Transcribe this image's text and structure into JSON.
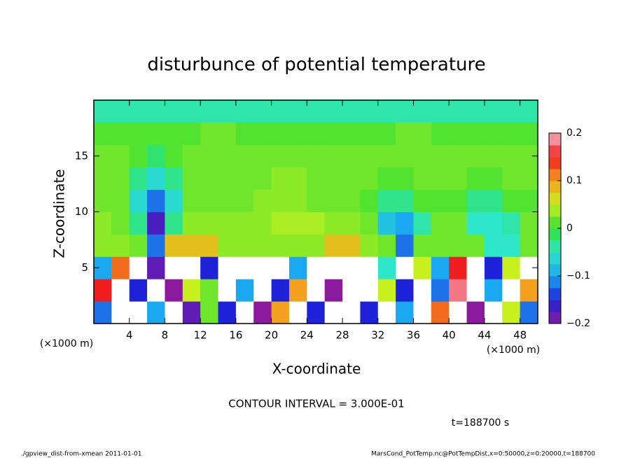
{
  "chart_data": {
    "type": "heatmap",
    "title": "disturbunce of potential temperature",
    "x_label": "X-coordinate",
    "y_label": "Z-coordinate",
    "x_unit": "(×1000 m)",
    "y_unit": "(×1000 m)",
    "contour_note": "CONTOUR INTERVAL = 3.000E-01",
    "time_note": "t=188700 s",
    "footer_left": "./gpview_dist-from-xmean  2011-01-01",
    "footer_right": "MarsCond_PotTemp.nc@PotTempDist,x=0:50000,z=0:20000,t=188700",
    "xlim": [
      0,
      50
    ],
    "ylim": [
      0,
      20
    ],
    "xticks": [
      4,
      8,
      12,
      16,
      20,
      24,
      28,
      32,
      36,
      40,
      44,
      48
    ],
    "yticks": [
      5,
      10,
      15
    ],
    "x": [
      1,
      3,
      5,
      7,
      9,
      11,
      13,
      15,
      17,
      19,
      21,
      23,
      25,
      27,
      29,
      31,
      33,
      35,
      37,
      39,
      41,
      43,
      45,
      47,
      49
    ],
    "y": [
      1,
      3,
      5,
      7,
      9,
      11,
      13,
      15,
      17,
      19
    ],
    "values": [
      [
        -0.12,
        0.3,
        0.3,
        -0.1,
        0.3,
        -0.18,
        0.02,
        -0.15,
        0.3,
        -0.2,
        0.1,
        0.3,
        -0.15,
        0.3,
        0.3,
        -0.15,
        0.3,
        -0.1,
        0.3,
        0.12,
        0.3,
        -0.2,
        0.3,
        0.05,
        -0.12
      ],
      [
        0.15,
        0.3,
        -0.15,
        0.3,
        -0.2,
        0.05,
        0.02,
        0.3,
        -0.1,
        0.3,
        -0.15,
        0.1,
        0.3,
        -0.2,
        0.3,
        0.3,
        0.05,
        -0.15,
        0.3,
        -0.12,
        0.18,
        0.3,
        -0.1,
        0.3,
        0.1
      ],
      [
        -0.1,
        0.12,
        0.3,
        -0.18,
        0.3,
        0.3,
        -0.15,
        0.3,
        0.3,
        0.3,
        0.3,
        -0.1,
        0.3,
        0.3,
        0.3,
        0.3,
        -0.05,
        0.3,
        0.05,
        -0.1,
        0.15,
        0.3,
        -0.15,
        0.05,
        0.3
      ],
      [
        0.03,
        0.03,
        0.02,
        -0.12,
        0.08,
        0.08,
        0.08,
        0.03,
        0.03,
        0.03,
        0.03,
        0.03,
        0.03,
        0.08,
        0.08,
        0.03,
        0.02,
        -0.12,
        0.02,
        0.02,
        0.02,
        0.02,
        -0.05,
        -0.05,
        0.02
      ],
      [
        0.03,
        0.02,
        -0.03,
        -0.17,
        -0.03,
        0.03,
        0.03,
        0.03,
        0.03,
        0.03,
        0.04,
        0.04,
        0.04,
        0.03,
        0.03,
        0.02,
        -0.08,
        -0.1,
        -0.04,
        0.02,
        0.02,
        -0.05,
        -0.05,
        -0.04,
        0.02
      ],
      [
        0.02,
        0.02,
        -0.06,
        -0.12,
        -0.06,
        0.02,
        0.02,
        0.02,
        0.02,
        0.03,
        0.03,
        0.03,
        0.02,
        0.02,
        0.02,
        0.01,
        -0.03,
        -0.03,
        0.01,
        0.01,
        0.01,
        -0.03,
        -0.03,
        0.01,
        0.01
      ],
      [
        0.02,
        0.02,
        -0.03,
        -0.06,
        -0.03,
        0.02,
        0.02,
        0.02,
        0.02,
        0.02,
        0.03,
        0.03,
        0.02,
        0.02,
        0.02,
        0.02,
        0.01,
        0.01,
        0.02,
        0.02,
        0.02,
        0.01,
        0.01,
        0.02,
        0.02
      ],
      [
        0.02,
        0.02,
        0.01,
        -0.02,
        0.01,
        0.02,
        0.02,
        0.02,
        0.02,
        0.02,
        0.02,
        0.02,
        0.02,
        0.02,
        0.02,
        0.02,
        0.02,
        0.02,
        0.02,
        0.02,
        0.02,
        0.02,
        0.02,
        0.02,
        0.02
      ],
      [
        0.01,
        0.01,
        0.01,
        0.01,
        0.01,
        0.01,
        0.02,
        0.02,
        0.01,
        0.01,
        0.01,
        0.01,
        0.01,
        0.01,
        0.01,
        0.01,
        0.01,
        0.02,
        0.02,
        0.01,
        0.01,
        0.01,
        0.01,
        0.01,
        0.01
      ],
      [
        -0.04,
        -0.04,
        -0.04,
        -0.04,
        -0.04,
        -0.04,
        -0.04,
        -0.04,
        -0.04,
        -0.04,
        -0.04,
        -0.04,
        -0.04,
        -0.04,
        -0.04,
        -0.04,
        -0.04,
        -0.04,
        -0.04,
        -0.04,
        -0.04,
        -0.04,
        -0.04,
        -0.04,
        -0.04
      ]
    ],
    "colorbar_lim": [
      -0.2,
      0.2
    ],
    "colorbar_ticks": [
      {
        "value": -0.2,
        "label": "−0.2"
      },
      {
        "value": -0.1,
        "label": "−0.1"
      },
      0,
      0.1,
      0.2
    ],
    "colormap": [
      "#8b1a9e",
      "#1e22d8",
      "#1aa8f0",
      "#2ee6c8",
      "#33e033",
      "#c8f01e",
      "#f5a01e",
      "#f01e1e",
      "#f5b4c8"
    ],
    "out_of_range_color": "#ffffff"
  }
}
